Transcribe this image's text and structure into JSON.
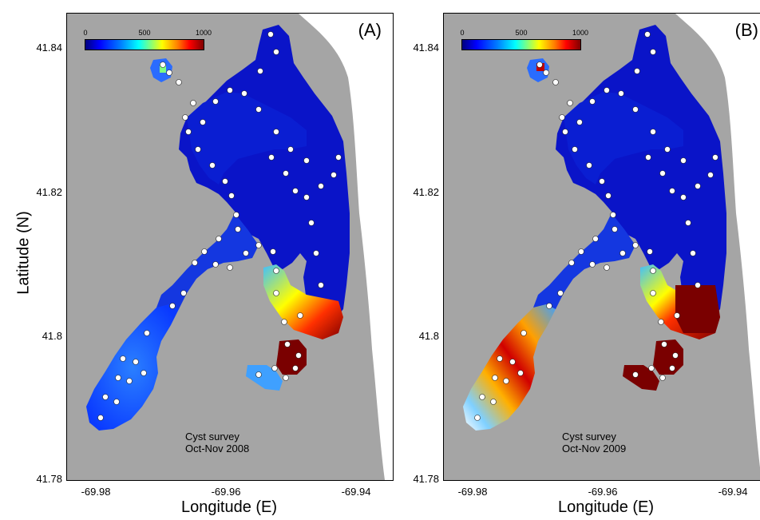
{
  "figure": {
    "y_axis_label": "Latitude (N)",
    "x_axis_label": "Longitude (E)",
    "y_ticks": [
      "41.84",
      "41.82",
      "41.8",
      "41.78"
    ],
    "x_ticks": [
      "-69.98",
      "-69.96",
      "-69.94"
    ]
  },
  "panels": [
    {
      "label": "(A)",
      "annotation_line1": "Cyst survey",
      "annotation_line2": "Oct-Nov 2008",
      "colorbar_ticks": [
        "0",
        "500",
        "1000"
      ]
    },
    {
      "label": "(B)",
      "annotation_line1": "Cyst survey",
      "annotation_line2": "Oct-Nov 2009",
      "colorbar_ticks": [
        "0",
        "500",
        "1000"
      ]
    }
  ],
  "colors": {
    "land": "#a5a5a5",
    "water_low": "#0000c8",
    "high": "#7f0000",
    "station": "#ffffff"
  }
}
